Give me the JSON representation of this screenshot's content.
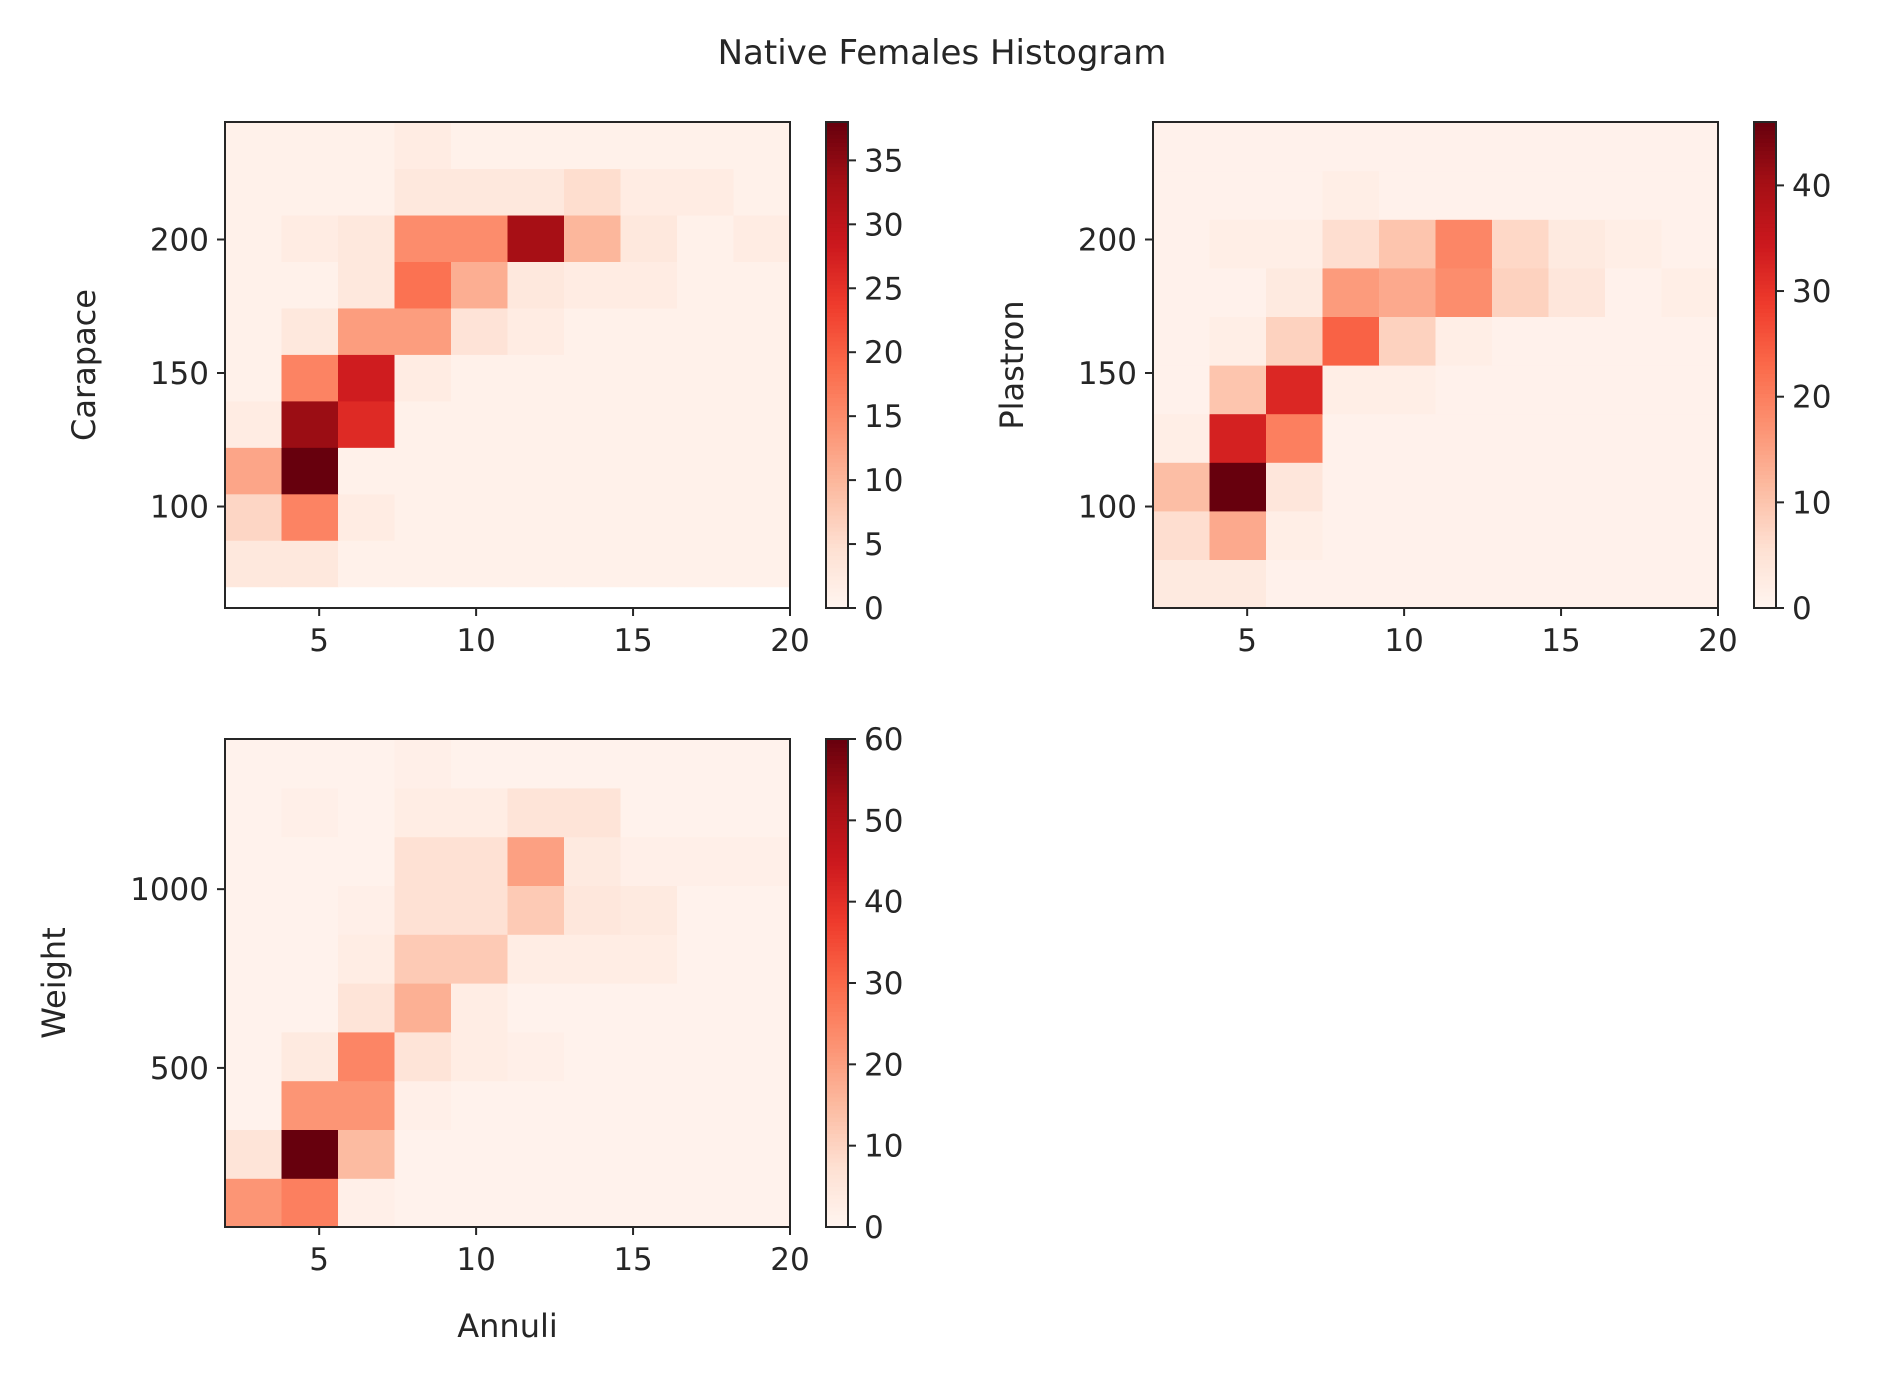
{
  "figure": {
    "title": "Native Females Histogram"
  },
  "chart_data": [
    {
      "type": "heatmap",
      "panel": "top-left",
      "xlabel": "",
      "ylabel": "Carapace",
      "xlim": [
        2,
        20
      ],
      "ylim": [
        62,
        244
      ],
      "x_edges": [
        2.0,
        3.8,
        5.6,
        7.4,
        9.2,
        11.0,
        12.8,
        14.6,
        16.4,
        18.2,
        20.0
      ],
      "y_edges": [
        70,
        87.4,
        104.8,
        122.2,
        139.6,
        157,
        174.4,
        191.8,
        209.2,
        226.6,
        244
      ],
      "x_ticks": [
        5,
        10,
        15,
        20
      ],
      "y_ticks": [
        100,
        150,
        200
      ],
      "colorbar": {
        "min": 0,
        "max": 38,
        "ticks": [
          0,
          5,
          10,
          15,
          20,
          25,
          30,
          35
        ]
      },
      "counts": [
        [
          3,
          3,
          1,
          1,
          1,
          1,
          1,
          1,
          1,
          1
        ],
        [
          6,
          16,
          2,
          1,
          1,
          1,
          1,
          1,
          1,
          1
        ],
        [
          12,
          38,
          1,
          1,
          1,
          1,
          1,
          1,
          1,
          1
        ],
        [
          2,
          34,
          26,
          1,
          1,
          1,
          1,
          1,
          1,
          1
        ],
        [
          1,
          16,
          28,
          2,
          1,
          1,
          1,
          1,
          1,
          1
        ],
        [
          1,
          3,
          13,
          13,
          4,
          2,
          1,
          1,
          1,
          1
        ],
        [
          1,
          1,
          3,
          18,
          11,
          3,
          2,
          2,
          1,
          1
        ],
        [
          1,
          2,
          3,
          15,
          15,
          33,
          10,
          3,
          1,
          2
        ],
        [
          1,
          1,
          1,
          3,
          3,
          3,
          5,
          2,
          2,
          1
        ],
        [
          1,
          1,
          1,
          2,
          1,
          1,
          1,
          1,
          1,
          1
        ]
      ]
    },
    {
      "type": "heatmap",
      "panel": "top-right",
      "xlabel": "",
      "ylabel": "Plastron",
      "xlim": [
        2,
        20
      ],
      "ylim": [
        62,
        244
      ],
      "x_edges": [
        2.0,
        3.8,
        5.6,
        7.4,
        9.2,
        11.0,
        12.8,
        14.6,
        16.4,
        18.2,
        20.0
      ],
      "y_edges": [
        62,
        80.2,
        98.4,
        116.6,
        134.8,
        153,
        171.2,
        189.4,
        207.6,
        225.8,
        244
      ],
      "x_ticks": [
        5,
        10,
        15,
        20
      ],
      "y_ticks": [
        100,
        150,
        200
      ],
      "colorbar": {
        "min": 0,
        "max": 46,
        "ticks": [
          0,
          10,
          20,
          30,
          40
        ]
      },
      "counts": [
        [
          3,
          3,
          1,
          1,
          1,
          1,
          1,
          1,
          1,
          1
        ],
        [
          6,
          14,
          2,
          1,
          1,
          1,
          1,
          1,
          1,
          1
        ],
        [
          11,
          46,
          4,
          1,
          1,
          1,
          1,
          1,
          1,
          1
        ],
        [
          2,
          33,
          20,
          1,
          1,
          1,
          1,
          1,
          1,
          1
        ],
        [
          1,
          10,
          32,
          2,
          2,
          1,
          1,
          1,
          1,
          1
        ],
        [
          1,
          2,
          8,
          24,
          8,
          2,
          1,
          1,
          1,
          1
        ],
        [
          1,
          1,
          3,
          16,
          14,
          18,
          8,
          4,
          1,
          2
        ],
        [
          1,
          2,
          2,
          6,
          10,
          19,
          7,
          3,
          2,
          1
        ],
        [
          1,
          1,
          1,
          2,
          1,
          1,
          1,
          1,
          1,
          1
        ],
        [
          1,
          1,
          1,
          1,
          1,
          1,
          1,
          1,
          1,
          1
        ]
      ]
    },
    {
      "type": "heatmap",
      "panel": "bottom-left",
      "xlabel": "Annuli",
      "ylabel": "Weight",
      "xlim": [
        2,
        20
      ],
      "ylim": [
        55,
        1420
      ],
      "x_edges": [
        2.0,
        3.8,
        5.6,
        7.4,
        9.2,
        11.0,
        12.8,
        14.6,
        16.4,
        18.2,
        20.0
      ],
      "y_edges": [
        55,
        191.5,
        328,
        464.5,
        601,
        737.5,
        874,
        1010.5,
        1147,
        1283.5,
        1420
      ],
      "x_ticks": [
        5,
        10,
        15,
        20
      ],
      "y_ticks": [
        500,
        1000
      ],
      "colorbar": {
        "min": 0,
        "max": 60,
        "ticks": [
          0,
          10,
          20,
          30,
          40,
          50,
          60
        ]
      },
      "counts": [
        [
          22,
          26,
          2,
          1,
          1,
          1,
          1,
          1,
          1,
          1
        ],
        [
          6,
          60,
          15,
          1,
          1,
          1,
          1,
          1,
          1,
          1
        ],
        [
          1,
          22,
          22,
          2,
          1,
          1,
          1,
          1,
          1,
          1
        ],
        [
          1,
          4,
          25,
          6,
          3,
          2,
          1,
          1,
          1,
          1
        ],
        [
          1,
          1,
          6,
          17,
          3,
          1,
          1,
          1,
          1,
          1
        ],
        [
          1,
          1,
          3,
          12,
          12,
          3,
          3,
          3,
          1,
          1
        ],
        [
          1,
          1,
          2,
          7,
          7,
          12,
          5,
          4,
          1,
          1
        ],
        [
          1,
          1,
          1,
          7,
          7,
          20,
          4,
          2,
          2,
          2
        ],
        [
          1,
          2,
          1,
          3,
          3,
          6,
          6,
          1,
          1,
          1
        ],
        [
          1,
          1,
          1,
          2,
          1,
          1,
          1,
          1,
          1,
          1
        ]
      ]
    }
  ]
}
